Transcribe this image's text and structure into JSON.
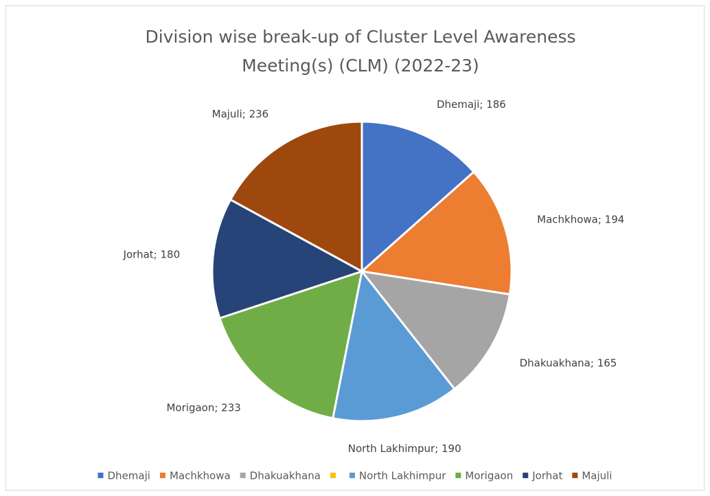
{
  "chart_data": {
    "type": "pie",
    "title": [
      "Division wise break-up of Cluster Level Awareness",
      "Meeting(s) (CLM) (2022-23)"
    ],
    "categories": [
      "Dhemaji",
      "Machkhowa",
      "Dhakuakhana",
      null,
      "North Lakhimpur",
      "Morigaon",
      "Jorhat",
      "Majuli"
    ],
    "values": [
      186,
      194,
      165,
      0,
      190,
      233,
      180,
      236
    ],
    "value_labels": [
      "Dhemaji; 186",
      "Machkhowa; 194",
      "Dhakuakhana; 165",
      null,
      "North Lakhimpur; 190",
      "Morigaon; 233",
      "Jorhat; 180",
      "Majuli; 236"
    ],
    "colors": [
      "#4472c4",
      "#ed7d31",
      "#a5a5a5",
      "#ffc000",
      "#5b9bd5",
      "#70ad47",
      "#264478",
      "#9e480e"
    ],
    "legend": "bottom"
  }
}
